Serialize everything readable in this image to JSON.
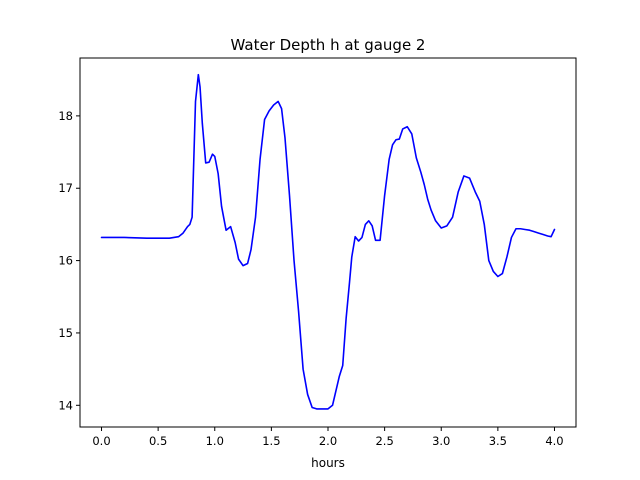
{
  "chart_data": {
    "type": "line",
    "title": "Water Depth h at gauge 2",
    "xlabel": "hours",
    "ylabel": "",
    "xlim": [
      -0.19,
      4.19
    ],
    "ylim": [
      13.7,
      18.8
    ],
    "x_ticks": [
      0.0,
      0.5,
      1.0,
      1.5,
      2.0,
      2.5,
      3.0,
      3.5,
      4.0
    ],
    "x_tick_labels": [
      "0.0",
      "0.5",
      "1.0",
      "1.5",
      "2.0",
      "2.5",
      "3.0",
      "3.5",
      "4.0"
    ],
    "y_ticks": [
      14,
      15,
      16,
      17,
      18
    ],
    "y_tick_labels": [
      "14",
      "15",
      "16",
      "17",
      "18"
    ],
    "grid": false,
    "series": [
      {
        "color": "#0000ff",
        "x": [
          0.0,
          0.2,
          0.4,
          0.6,
          0.68,
          0.72,
          0.76,
          0.78,
          0.8,
          0.83,
          0.855,
          0.87,
          0.89,
          0.92,
          0.95,
          0.98,
          1.0,
          1.03,
          1.06,
          1.1,
          1.14,
          1.18,
          1.21,
          1.25,
          1.29,
          1.32,
          1.36,
          1.4,
          1.44,
          1.48,
          1.52,
          1.56,
          1.59,
          1.62,
          1.66,
          1.7,
          1.74,
          1.78,
          1.82,
          1.86,
          1.9,
          1.93,
          1.96,
          2.0,
          2.04,
          2.07,
          2.1,
          2.13,
          2.16,
          2.19,
          2.21,
          2.24,
          2.27,
          2.3,
          2.33,
          2.36,
          2.39,
          2.42,
          2.46,
          2.5,
          2.54,
          2.57,
          2.6,
          2.63,
          2.66,
          2.7,
          2.74,
          2.78,
          2.82,
          2.85,
          2.88,
          2.91,
          2.95,
          3.0,
          3.05,
          3.1,
          3.15,
          3.2,
          3.25,
          3.3,
          3.34,
          3.38,
          3.42,
          3.46,
          3.5,
          3.54,
          3.58,
          3.62,
          3.66,
          3.7,
          3.74,
          3.78,
          3.82,
          3.86,
          3.9,
          3.94,
          3.97,
          4.0
        ],
        "y": [
          16.32,
          16.32,
          16.31,
          16.31,
          16.33,
          16.38,
          16.47,
          16.5,
          16.6,
          18.2,
          18.57,
          18.4,
          17.9,
          17.35,
          17.36,
          17.47,
          17.44,
          17.2,
          16.75,
          16.42,
          16.47,
          16.25,
          16.02,
          15.93,
          15.96,
          16.15,
          16.6,
          17.4,
          17.95,
          18.07,
          18.15,
          18.2,
          18.1,
          17.7,
          16.9,
          16.0,
          15.3,
          14.5,
          14.15,
          13.97,
          13.95,
          13.95,
          13.95,
          13.95,
          14.0,
          14.2,
          14.4,
          14.55,
          15.2,
          15.7,
          16.05,
          16.33,
          16.27,
          16.32,
          16.5,
          16.55,
          16.48,
          16.28,
          16.28,
          16.9,
          17.4,
          17.6,
          17.67,
          17.68,
          17.82,
          17.85,
          17.75,
          17.42,
          17.22,
          17.05,
          16.85,
          16.7,
          16.55,
          16.45,
          16.48,
          16.6,
          16.95,
          17.17,
          17.14,
          16.95,
          16.82,
          16.5,
          16.0,
          15.85,
          15.78,
          15.82,
          16.05,
          16.32,
          16.44,
          16.44,
          16.43,
          16.42,
          16.4,
          16.38,
          16.36,
          16.34,
          16.33,
          16.43
        ]
      }
    ]
  }
}
